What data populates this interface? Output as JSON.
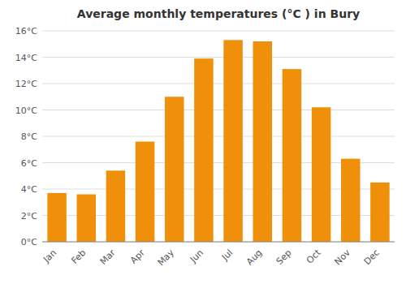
{
  "chart_data": {
    "type": "bar",
    "title": "Average monthly temperatures (°C ) in Bury",
    "categories": [
      "Jan",
      "Feb",
      "Mar",
      "Apr",
      "May",
      "Jun",
      "Jul",
      "Aug",
      "Sep",
      "Oct",
      "Nov",
      "Dec"
    ],
    "values": [
      3.7,
      3.6,
      5.4,
      7.6,
      11.0,
      13.9,
      15.3,
      15.2,
      13.1,
      10.2,
      6.3,
      4.5
    ],
    "color": "#F0900A",
    "ylim": [
      0,
      16
    ],
    "yticks": [
      {
        "value": 0,
        "label": "0°C"
      },
      {
        "value": 2,
        "label": "2°C"
      },
      {
        "value": 4,
        "label": "4°C"
      },
      {
        "value": 6,
        "label": "6°C"
      },
      {
        "value": 8,
        "label": "8°C"
      },
      {
        "value": 10,
        "label": "10°C"
      },
      {
        "value": 12,
        "label": "12°C"
      },
      {
        "value": 14,
        "label": "14°C"
      },
      {
        "value": 16,
        "label": "16°C"
      }
    ],
    "grid": true
  }
}
